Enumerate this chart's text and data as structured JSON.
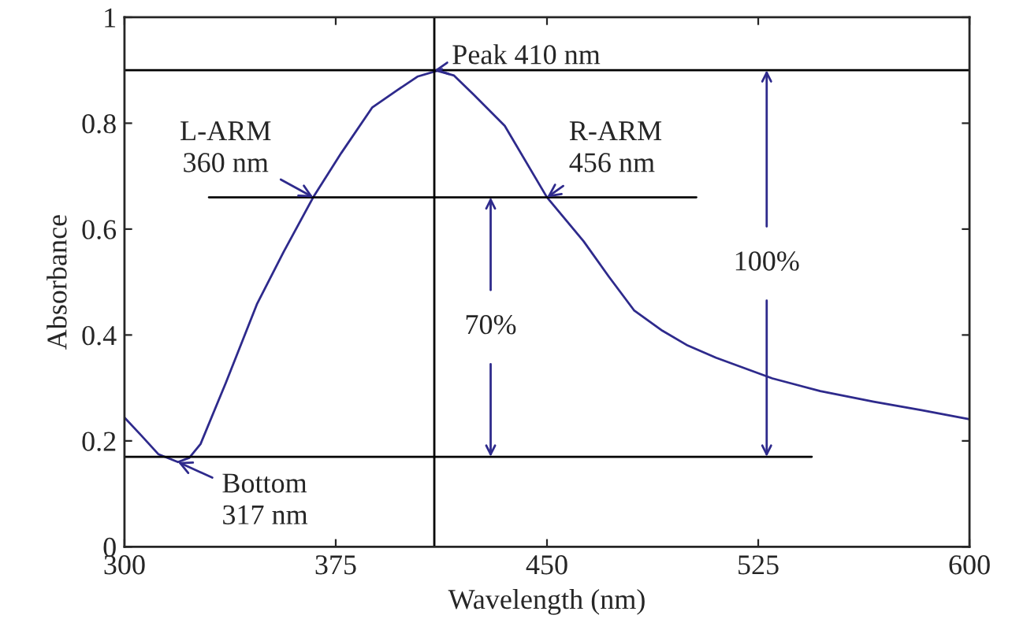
{
  "chart_data": {
    "type": "line",
    "xlabel": "Wavelength (nm)",
    "ylabel": "Absorbance",
    "xlim": [
      300,
      600
    ],
    "xticks": [
      300,
      375,
      450,
      525,
      600
    ],
    "ylim": [
      0,
      1
    ],
    "yticks": [
      0,
      0.2,
      0.4,
      0.6,
      0.8,
      1
    ],
    "series": [
      {
        "color": "#2e2a8c",
        "x": [
          300,
          306,
          312,
          319,
          323,
          327,
          336,
          347,
          356.5,
          367,
          377,
          388,
          397,
          404,
          411,
          417,
          424,
          435,
          450,
          463,
          472,
          481,
          491,
          500,
          510,
          530,
          547,
          566,
          583,
          600
        ],
        "values": [
          0.244,
          0.21,
          0.175,
          0.16,
          0.168,
          0.194,
          0.31,
          0.458,
          0.557,
          0.66,
          0.744,
          0.83,
          0.863,
          0.888,
          0.899,
          0.89,
          0.854,
          0.795,
          0.66,
          0.577,
          0.51,
          0.446,
          0.408,
          0.38,
          0.357,
          0.318,
          0.294,
          0.274,
          0.258,
          0.241
        ]
      },
      {
        "color": "#000000",
        "x": [
          330,
          503
        ],
        "values": [
          0.66,
          0.66
        ]
      },
      {
        "color": "#000000",
        "x": [
          300,
          544
        ],
        "values": [
          0.17,
          0.17
        ]
      }
    ],
    "ref_lines": [
      {
        "axis": "y",
        "value": 0.9,
        "color": "#000000"
      },
      {
        "axis": "x",
        "value": 410,
        "color": "#000000"
      }
    ],
    "annotations": [
      {
        "text": "Peak 410 nm",
        "x": 410,
        "y": 0.9
      },
      {
        "text": "L-ARM\n360 nm",
        "x": 367,
        "y": 0.66
      },
      {
        "text": "R-ARM\n456 nm",
        "x": 450,
        "y": 0.66
      },
      {
        "text": "Bottom\n317 nm",
        "x": 319,
        "y": 0.16
      },
      {
        "text": "70%",
        "x": 430,
        "y": 0.66
      },
      {
        "text": "100%",
        "x": 528,
        "y": 0.9
      }
    ],
    "grid": false,
    "legend": false
  }
}
